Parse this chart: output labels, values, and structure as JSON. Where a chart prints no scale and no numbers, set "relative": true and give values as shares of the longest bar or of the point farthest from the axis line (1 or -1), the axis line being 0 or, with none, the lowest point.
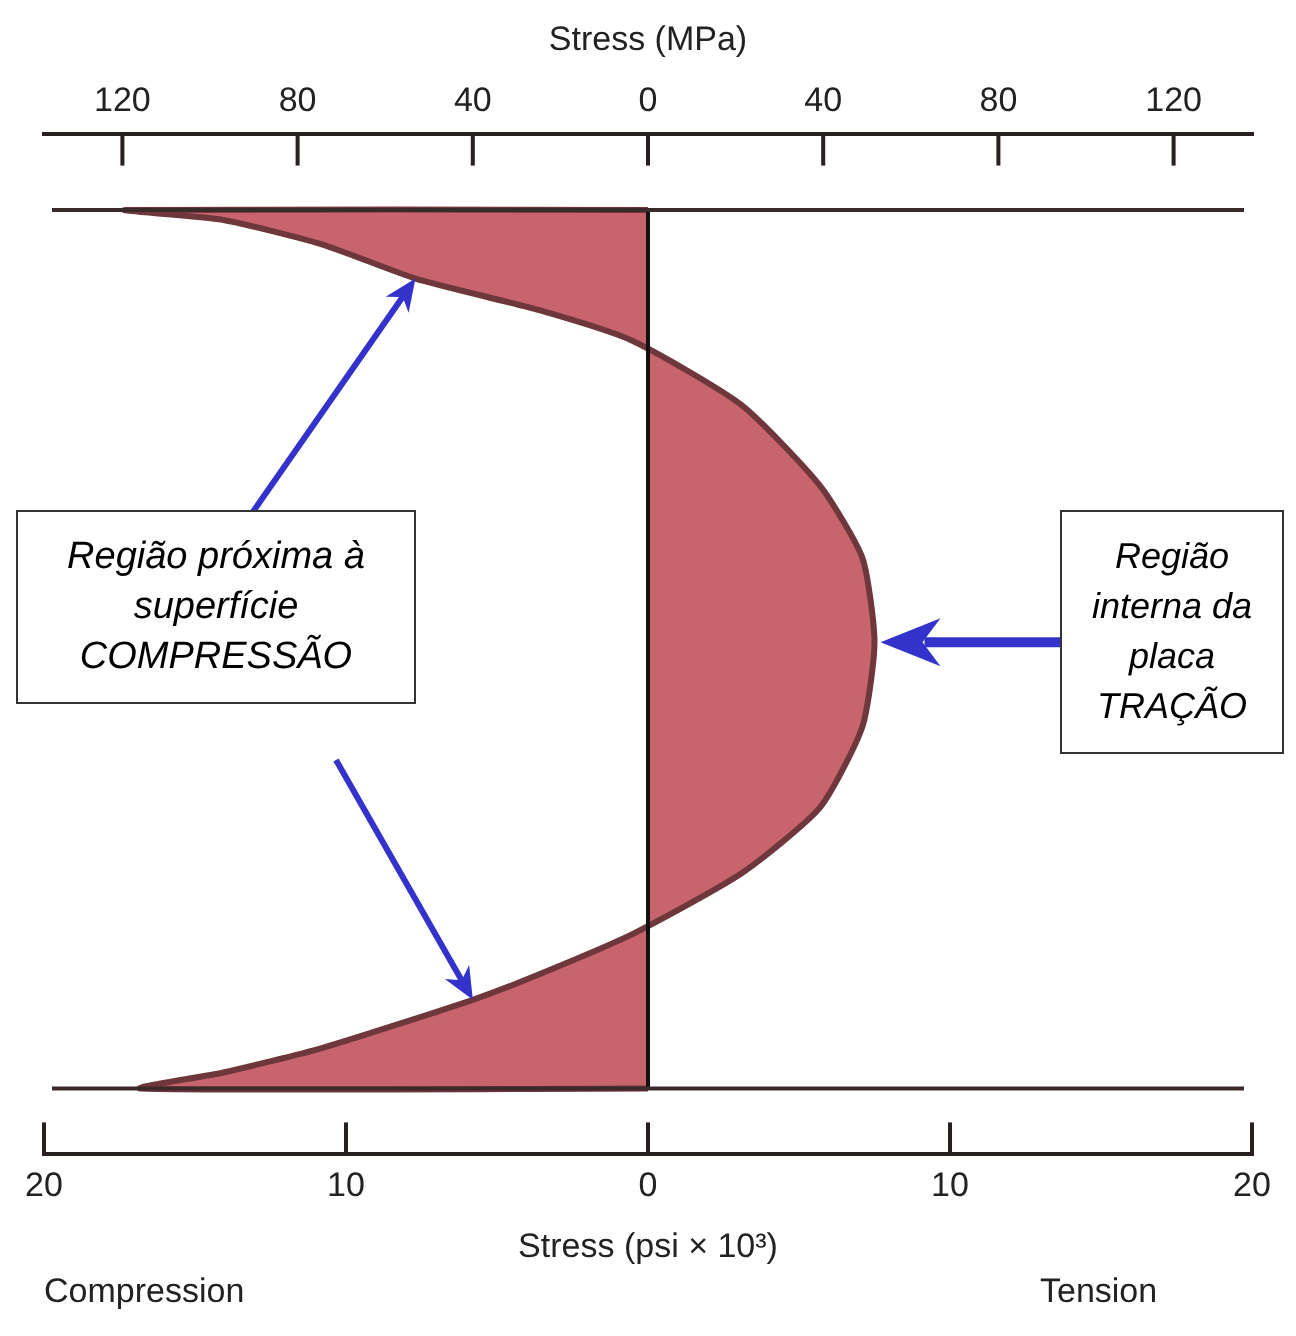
{
  "chart_data": {
    "type": "area",
    "relative": true,
    "xlabel": "Stress (psi × 10³)",
    "x2label": "Stress (MPa)",
    "xlim": [
      -20,
      20
    ],
    "xticks": [
      {
        "value": -20,
        "label": "20"
      },
      {
        "value": -10,
        "label": "10"
      },
      0,
      10,
      20
    ],
    "x2lim": [
      -137.9,
      137.9
    ],
    "x2ticks": [
      {
        "value": -120,
        "label": "120"
      },
      {
        "value": -80,
        "label": "80"
      },
      {
        "value": -40,
        "label": "40"
      },
      0,
      40,
      80,
      120
    ],
    "series": [
      {
        "color": "#c8646c",
        "x": [
          0,
          -17.3,
          -14.1,
          -10.8,
          -7.7,
          -3.6,
          -0.5,
          3.1,
          5.7,
          7.1,
          7.5,
          7.1,
          5.7,
          3.1,
          -0.5,
          -3.6,
          -5.8,
          -10.8,
          -14.1,
          -16.8,
          0
        ],
        "values": [
          1.0,
          1.0,
          0.989,
          0.961,
          0.922,
          0.886,
          0.851,
          0.778,
          0.686,
          0.604,
          0.508,
          0.412,
          0.32,
          0.245,
          0.176,
          0.13,
          0.101,
          0.046,
          0.018,
          0.0,
          0.0
        ]
      }
    ],
    "ref_lines": [
      {
        "axis": "x",
        "value": 0,
        "color": "#111111"
      },
      {
        "axis": "y",
        "value": 1,
        "color": "#3a2a2a"
      },
      {
        "axis": "y",
        "value": 0,
        "color": "#3a2a2a"
      }
    ],
    "annotations": [
      "Compression",
      "Tension",
      "Região próxima à superfície COMPRESSÃO",
      "Região interna da placa TRAÇÃO"
    ]
  }
}
